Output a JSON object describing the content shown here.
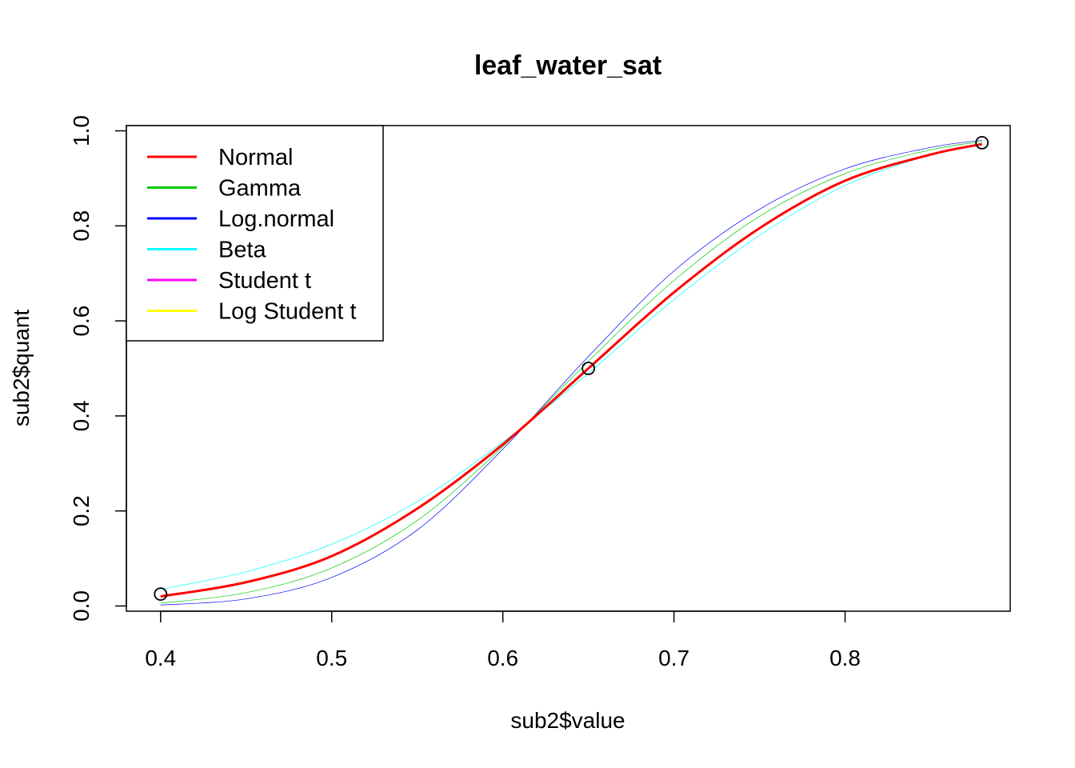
{
  "chart_data": {
    "type": "line",
    "title": "leaf_water_sat",
    "xlabel": "sub2$value",
    "ylabel": "sub2$quant",
    "xlim": [
      0.38,
      0.8965
    ],
    "ylim": [
      -0.011,
      1.011
    ],
    "x_ticks": [
      "0.4",
      "0.5",
      "0.6",
      "0.7",
      "0.8"
    ],
    "x_tick_values": [
      0.4,
      0.5,
      0.6,
      0.7,
      0.8
    ],
    "y_ticks": [
      "0.0",
      "0.2",
      "0.4",
      "0.6",
      "0.8",
      "1.0"
    ],
    "y_tick_values": [
      0.0,
      0.2,
      0.4,
      0.6,
      0.8,
      1.0
    ],
    "grid": false,
    "legend_position": "top-left",
    "points": {
      "x": [
        0.4,
        0.65,
        0.88
      ],
      "y": [
        0.025,
        0.5,
        0.975
      ]
    },
    "series": [
      {
        "name": "Normal",
        "color": "#ff0000",
        "x": [
          0.4,
          0.45,
          0.5,
          0.55,
          0.6,
          0.65,
          0.7,
          0.75,
          0.8,
          0.85,
          0.88
        ],
        "y": [
          0.02,
          0.05,
          0.105,
          0.205,
          0.34,
          0.5,
          0.66,
          0.795,
          0.895,
          0.95,
          0.972
        ]
      },
      {
        "name": "Gamma",
        "color": "#00cd00",
        "x": [
          0.4,
          0.45,
          0.5,
          0.55,
          0.6,
          0.65,
          0.7,
          0.75,
          0.8,
          0.85,
          0.88
        ],
        "y": [
          0.006,
          0.028,
          0.08,
          0.18,
          0.335,
          0.515,
          0.685,
          0.82,
          0.91,
          0.96,
          0.977
        ]
      },
      {
        "name": "Log.normal",
        "color": "#0000ff",
        "x": [
          0.4,
          0.45,
          0.5,
          0.55,
          0.6,
          0.65,
          0.7,
          0.75,
          0.8,
          0.85,
          0.88
        ],
        "y": [
          0.002,
          0.015,
          0.06,
          0.16,
          0.33,
          0.525,
          0.705,
          0.835,
          0.92,
          0.965,
          0.98
        ]
      },
      {
        "name": "Beta",
        "color": "#00ffff",
        "x": [
          0.4,
          0.45,
          0.5,
          0.55,
          0.6,
          0.65,
          0.7,
          0.75,
          0.8,
          0.85,
          0.88
        ],
        "y": [
          0.035,
          0.072,
          0.13,
          0.22,
          0.345,
          0.49,
          0.645,
          0.78,
          0.885,
          0.95,
          0.974
        ]
      },
      {
        "name": "Student t",
        "color": "#ff00ff",
        "x": [
          0.4,
          0.45,
          0.5,
          0.55,
          0.6,
          0.65,
          0.7,
          0.75,
          0.8,
          0.85,
          0.88
        ],
        "y": [
          0.02,
          0.05,
          0.105,
          0.205,
          0.34,
          0.5,
          0.66,
          0.795,
          0.895,
          0.95,
          0.972
        ]
      },
      {
        "name": "Log Student t",
        "color": "#ffff00",
        "x": [
          0.4,
          0.45,
          0.5,
          0.55,
          0.6,
          0.65,
          0.7,
          0.75,
          0.8,
          0.85,
          0.88
        ],
        "y": [
          0.02,
          0.05,
          0.105,
          0.205,
          0.34,
          0.5,
          0.66,
          0.795,
          0.895,
          0.95,
          0.972
        ]
      }
    ]
  }
}
